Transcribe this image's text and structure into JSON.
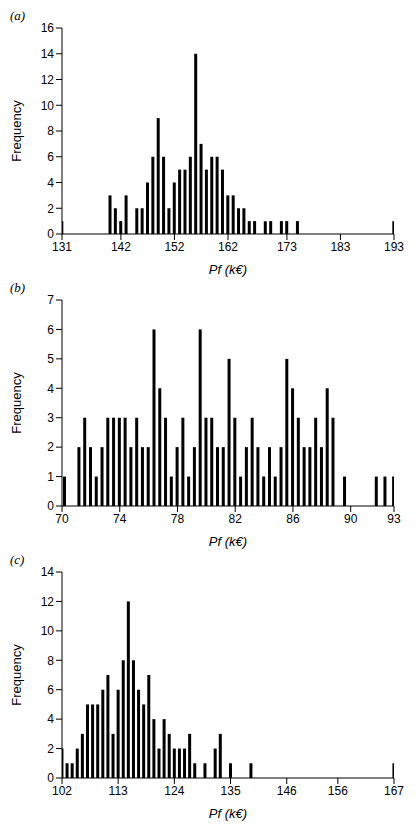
{
  "chart_data": [
    {
      "type": "bar",
      "title": "(a)",
      "x_label": "Pf (k€)",
      "y_label": "Frequency",
      "color": "#000000",
      "grid": false,
      "x": [
        131,
        140,
        141,
        142,
        143,
        145,
        146,
        147,
        148,
        149,
        150,
        151,
        152,
        153,
        154,
        155,
        156,
        157,
        158,
        159,
        160,
        161,
        162,
        163,
        164,
        165,
        166,
        167,
        169,
        170,
        172,
        173,
        175,
        193
      ],
      "values": [
        1,
        3,
        2,
        1,
        3,
        2,
        2,
        4,
        6,
        9,
        6,
        2,
        4,
        5,
        5,
        6,
        14,
        7,
        5,
        6,
        6,
        5,
        3,
        3,
        2,
        2,
        1,
        1,
        1,
        1,
        1,
        1,
        1,
        1
      ],
      "xlim": [
        131,
        193
      ],
      "xticks": [
        131,
        142,
        152,
        162,
        173,
        183,
        193
      ],
      "ylim": [
        0,
        16
      ],
      "yticks": [
        0,
        2,
        4,
        6,
        8,
        10,
        12,
        14,
        16
      ]
    },
    {
      "type": "bar",
      "title": "(b)",
      "x_label": "Pf (k€)",
      "y_label": "Frequency",
      "color": "#000000",
      "grid": false,
      "x": [
        70.2,
        71.2,
        71.6,
        72.0,
        72.4,
        72.8,
        73.2,
        73.6,
        74.0,
        74.4,
        74.8,
        75.2,
        75.6,
        76.0,
        76.4,
        76.8,
        77.2,
        77.6,
        78.0,
        78.4,
        78.8,
        79.2,
        79.6,
        80.0,
        80.4,
        80.8,
        81.2,
        81.6,
        82.0,
        82.4,
        82.8,
        83.2,
        83.6,
        84.0,
        84.4,
        84.8,
        85.2,
        85.6,
        86.0,
        86.4,
        86.8,
        87.2,
        87.6,
        88.0,
        88.4,
        88.8,
        89.6,
        91.8,
        92.4,
        93
      ],
      "values": [
        1,
        2,
        3,
        2,
        1,
        2,
        3,
        3,
        3,
        3,
        2,
        3,
        2,
        2,
        6,
        4,
        3,
        1,
        2,
        3,
        1,
        2,
        6,
        3,
        3,
        2,
        2,
        5,
        3,
        1,
        2,
        3,
        2,
        1,
        2,
        1,
        2,
        5,
        4,
        3,
        2,
        2,
        3,
        2,
        4,
        3,
        1,
        1,
        1,
        1
      ],
      "xlim": [
        70,
        93
      ],
      "xticks": [
        70,
        74,
        78,
        82,
        86,
        90,
        93
      ],
      "ylim": [
        0,
        7
      ],
      "yticks": [
        0,
        1,
        2,
        3,
        4,
        5,
        6,
        7
      ]
    },
    {
      "type": "bar",
      "title": "(c)",
      "x_label": "Pf (k€)",
      "y_label": "Frequency",
      "color": "#000000",
      "grid": false,
      "x": [
        102,
        103,
        104,
        105,
        106,
        107,
        108,
        109,
        110,
        111,
        112,
        113,
        114,
        115,
        116,
        117,
        118,
        119,
        120,
        121,
        122,
        123,
        124,
        125,
        126,
        127,
        128,
        130,
        132,
        133,
        135,
        139,
        167
      ],
      "values": [
        2,
        1,
        1,
        2,
        3,
        5,
        5,
        5,
        6,
        7,
        3,
        6,
        8,
        12,
        8,
        6,
        5,
        7,
        4,
        2,
        4,
        3,
        2,
        2,
        2,
        3,
        1,
        1,
        2,
        3,
        1,
        1,
        1
      ],
      "xlim": [
        102,
        167
      ],
      "xticks": [
        102,
        113,
        124,
        135,
        146,
        156,
        167
      ],
      "ylim": [
        0,
        14
      ],
      "yticks": [
        0,
        2,
        4,
        6,
        8,
        10,
        12,
        14
      ]
    }
  ]
}
